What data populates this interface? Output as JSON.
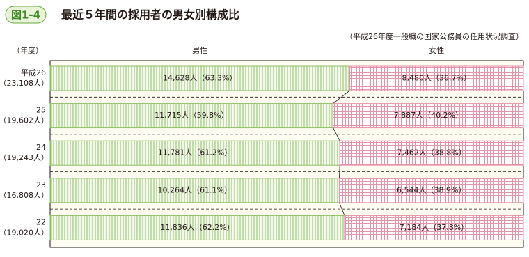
{
  "figure_label": "図1-4",
  "chart_data": {
    "type": "stacked_bar_100",
    "title": "最近５年間の採用者の男女別構成比",
    "source": "（平成26年度一般職の国家公務員の任用状況調査）",
    "category_axis_label": "（年度）",
    "categories": [
      "平成26",
      "25",
      "24",
      "23",
      "22"
    ],
    "category_sublabels": [
      "（23,108人）",
      "（19,602人）",
      "（19,243人）",
      "（16,808人）",
      "（19,020人）"
    ],
    "xlim": [
      0,
      100
    ],
    "series": [
      {
        "name": "男性",
        "color": "#8cc063",
        "values": [
          63.3,
          59.8,
          61.2,
          61.1,
          62.2
        ],
        "value_labels": [
          "14,628人（63.3%）",
          "11,715人（59.8%）",
          "11,781人（61.2%）",
          "10,264人（61.1%）",
          "11,836人（62.2%）"
        ]
      },
      {
        "name": "女性",
        "color": "#e593a8",
        "values": [
          36.7,
          40.2,
          38.8,
          38.9,
          37.8
        ],
        "value_labels": [
          "8,480人（36.7%）",
          "7,887人（40.2%）",
          "7,462人（38.8%）",
          "6,544人（38.9%）",
          "7,184人（37.8%）"
        ]
      }
    ]
  }
}
